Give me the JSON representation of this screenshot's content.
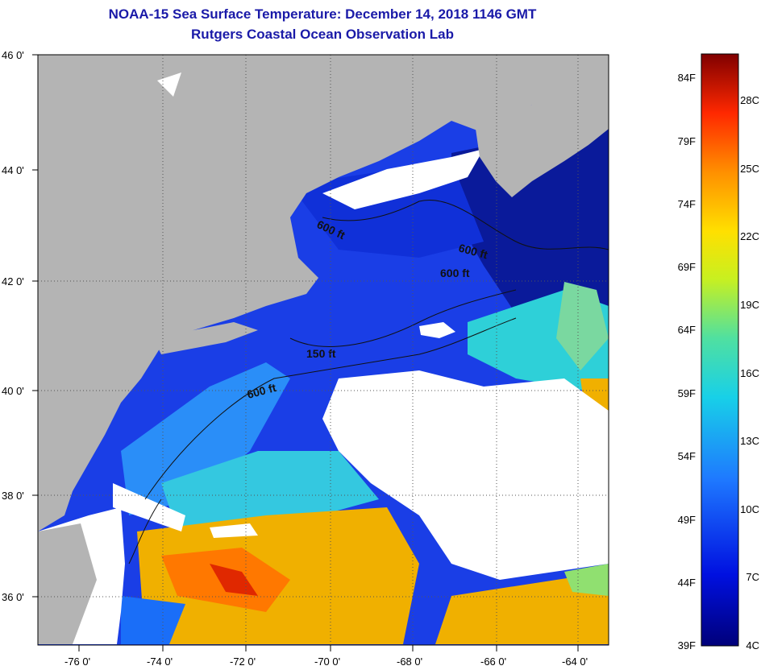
{
  "title_line1": "NOAA-15 Sea Surface Temperature:  December 14, 2018 1146 GMT",
  "title_line2": "Rutgers Coastal Ocean Observation Lab",
  "lat_labels": [
    "46 0'",
    "44 0'",
    "42 0'",
    "40 0'",
    "38 0'",
    "36 0'"
  ],
  "lon_labels": [
    "-76 0'",
    "-74 0'",
    "-72 0'",
    "-70 0'",
    "-68 0'",
    "-66 0'",
    "-64 0'"
  ],
  "contour_labels": [
    "600 ft",
    "600 ft",
    "600 ft",
    "150 ft",
    "600 ft"
  ],
  "colorbar": {
    "fahrenheit": [
      "84F",
      "79F",
      "74F",
      "69F",
      "64F",
      "59F",
      "54F",
      "49F",
      "44F",
      "39F"
    ],
    "celsius": [
      "28C",
      "25C",
      "22C",
      "19C",
      "16C",
      "13C",
      "10C",
      "7C",
      "4C"
    ]
  },
  "colors": {
    "land": "#b4b4b4",
    "cloud": "#ffffff",
    "cold": "#0a1a9a",
    "cool": "#1a4cf0",
    "mid": "#2ed0d8",
    "warm": "#f0b000",
    "title": "#1a1aa8"
  }
}
